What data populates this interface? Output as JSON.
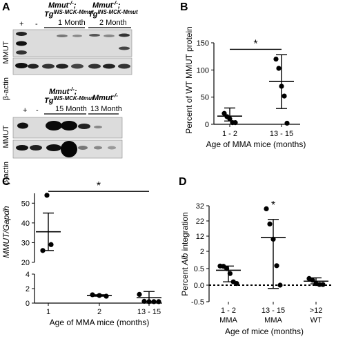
{
  "panels": {
    "a": {
      "label": "A",
      "blot_top": {
        "lane_plus": "+",
        "lane_minus": "-",
        "group1": {
          "line1": "Mmut",
          "line1_sup": "-/-",
          "line2": "Tg",
          "line2_sup": "INS-MCK-Mmut",
          "line3": "1 Month"
        },
        "group2": {
          "line1": "Mmut",
          "line1_sup": "-/-",
          "line2": "Tg",
          "line2_sup": "INS-MCK-Mmut",
          "line3": "2 Month"
        },
        "row1_label": "MMUT",
        "row2_label": "β-actin"
      },
      "blot_bottom": {
        "lane_plus": "+",
        "lane_minus": "-",
        "group1": {
          "line1": "Mmut",
          "line1_sup": "-/-",
          "line2": "Tg",
          "line2_sup": "INS-MCK-Mmut",
          "line3": "15 Month"
        },
        "group2": {
          "line1": "Mmut",
          "line1_sup": "-/-",
          "line3": "13 Month"
        },
        "row1_label": "MMUT",
        "row2_label": "β-actin"
      }
    },
    "b": {
      "label": "B",
      "sig": "*"
    },
    "c": {
      "label": "C",
      "sig": "*"
    },
    "d": {
      "label": "D",
      "sig": "*"
    }
  },
  "chart_data": [
    {
      "id": "B",
      "type": "scatter",
      "ylabel": "Percent of WT MMUT protein",
      "xlabel": "Age of MMA mice (months)",
      "categories": [
        "1 - 2",
        "13 - 15"
      ],
      "ylim": [
        0,
        150
      ],
      "yticks": [
        0,
        50,
        100,
        150
      ],
      "groups": [
        {
          "category": "1 - 2",
          "points": [
            20,
            14,
            10,
            3,
            3
          ],
          "mean": 15,
          "sd_low": 6,
          "sd_high": 30
        },
        {
          "category": "13 - 15",
          "points": [
            120,
            103,
            70,
            52,
            2
          ],
          "mean": 79,
          "sd_low": 29,
          "sd_high": 128
        }
      ],
      "bracket": {
        "from": "1 - 2",
        "to": "13 - 15",
        "y": 138
      }
    },
    {
      "id": "C",
      "type": "scatter",
      "ylabel_italic": "MMUT/Gapdh",
      "xlabel": "Age of MMA mice (months)",
      "categories": [
        "1",
        "2",
        "13 - 15"
      ],
      "broken_axis": true,
      "upper_ylim": [
        20,
        55
      ],
      "upper_yticks": [
        20,
        30,
        40,
        50
      ],
      "lower_ylim": [
        0,
        4
      ],
      "lower_yticks": [
        0,
        2,
        4
      ],
      "groups": [
        {
          "category": "1",
          "points": [
            54,
            29,
            26
          ],
          "mean": 35.5,
          "sd_low": 26,
          "sd_high": 45
        },
        {
          "category": "2",
          "points": [
            1.15,
            1.05,
            0.95
          ],
          "mean": 1.05,
          "sd_low": 0.95,
          "sd_high": 1.15
        },
        {
          "category": "13 - 15",
          "points": [
            1.2,
            0.25,
            0.2,
            0.2,
            0.2
          ],
          "mean": 0.75,
          "sd_low": 0.2,
          "sd_high": 1.6
        }
      ],
      "bracket": {
        "from": "1",
        "to": "13 - 15",
        "y": 56
      }
    },
    {
      "id": "D",
      "type": "scatter",
      "ylabel_pre": "Percent ",
      "ylabel_italic": "Alb",
      "ylabel_post": " integration",
      "xlabel": "Age of mice (months)",
      "categories": [
        "1 - 2",
        "13 - 15",
        ">12"
      ],
      "category_sublabels": [
        "MMA",
        "MMA",
        "WT"
      ],
      "yticks": [
        "-0.5",
        "0.0",
        "0.5",
        "2",
        "12",
        "22",
        "32"
      ],
      "reference_line": 0.0,
      "groups": [
        {
          "category": "1 - 2",
          "points": [
            0.72,
            0.7,
            0.5,
            0.35,
            0.1,
            0.05
          ],
          "mean": 0.45,
          "sd_low": 0.1,
          "sd_high": 0.72
        },
        {
          "category": "13 - 15",
          "points": [
            30,
            20,
            10,
            0.75,
            0.0
          ],
          "mean": 11,
          "sd_low": -0.1,
          "sd_high": 23
        },
        {
          "category": ">12",
          "points": [
            0.2,
            0.15,
            0.05,
            0.02,
            0.02
          ],
          "mean": 0.12,
          "sd_low": 0.04,
          "sd_high": 0.22
        }
      ],
      "sig_over": "13 - 15"
    }
  ]
}
